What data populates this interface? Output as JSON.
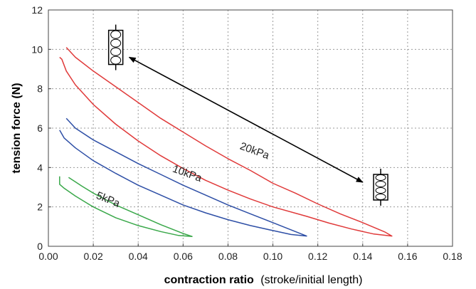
{
  "chart_data": {
    "type": "line",
    "xlabel_bold": "contraction ratio",
    "xlabel_rest": "(stroke/initial length)",
    "ylabel": "tension force (N)",
    "xlim": [
      0,
      0.18
    ],
    "ylim": [
      0,
      12
    ],
    "xticks": [
      "0.00",
      "0.02",
      "0.04",
      "0.06",
      "0.08",
      "0.10",
      "0.12",
      "0.14",
      "0.16",
      "0.18"
    ],
    "yticks": [
      "0",
      "2",
      "4",
      "6",
      "8",
      "10",
      "12"
    ],
    "grid": true,
    "series": [
      {
        "name": "20kPa",
        "color": "#e03a3a",
        "label_pos": [
          0.085,
          4.95
        ],
        "label_rotate": 20,
        "upper": [
          [
            0.008,
            10.1
          ],
          [
            0.012,
            9.6
          ],
          [
            0.02,
            8.9
          ],
          [
            0.03,
            8.1
          ],
          [
            0.04,
            7.3
          ],
          [
            0.05,
            6.5
          ],
          [
            0.06,
            5.8
          ],
          [
            0.07,
            5.1
          ],
          [
            0.08,
            4.45
          ],
          [
            0.09,
            3.85
          ],
          [
            0.1,
            3.2
          ],
          [
            0.11,
            2.7
          ],
          [
            0.12,
            2.15
          ],
          [
            0.13,
            1.65
          ],
          [
            0.14,
            1.2
          ],
          [
            0.15,
            0.72
          ],
          [
            0.153,
            0.52
          ]
        ],
        "lower": [
          [
            0.153,
            0.52
          ],
          [
            0.145,
            0.62
          ],
          [
            0.135,
            0.88
          ],
          [
            0.125,
            1.18
          ],
          [
            0.115,
            1.52
          ],
          [
            0.1,
            2.0
          ],
          [
            0.09,
            2.4
          ],
          [
            0.08,
            2.85
          ],
          [
            0.07,
            3.35
          ],
          [
            0.06,
            3.95
          ],
          [
            0.05,
            4.6
          ],
          [
            0.04,
            5.35
          ],
          [
            0.03,
            6.2
          ],
          [
            0.02,
            7.2
          ],
          [
            0.012,
            8.2
          ],
          [
            0.008,
            8.9
          ],
          [
            0.006,
            9.5
          ],
          [
            0.005,
            9.6
          ]
        ]
      },
      {
        "name": "10kPa",
        "color": "#2e4fa6",
        "label_pos": [
          0.055,
          3.8
        ],
        "label_rotate": 20,
        "upper": [
          [
            0.008,
            6.5
          ],
          [
            0.012,
            6.0
          ],
          [
            0.02,
            5.4
          ],
          [
            0.03,
            4.8
          ],
          [
            0.04,
            4.2
          ],
          [
            0.05,
            3.65
          ],
          [
            0.06,
            3.1
          ],
          [
            0.07,
            2.6
          ],
          [
            0.08,
            2.1
          ],
          [
            0.09,
            1.65
          ],
          [
            0.1,
            1.2
          ],
          [
            0.11,
            0.75
          ],
          [
            0.115,
            0.52
          ]
        ],
        "lower": [
          [
            0.115,
            0.52
          ],
          [
            0.108,
            0.6
          ],
          [
            0.1,
            0.8
          ],
          [
            0.09,
            1.05
          ],
          [
            0.08,
            1.35
          ],
          [
            0.07,
            1.7
          ],
          [
            0.06,
            2.1
          ],
          [
            0.05,
            2.6
          ],
          [
            0.04,
            3.1
          ],
          [
            0.03,
            3.7
          ],
          [
            0.02,
            4.35
          ],
          [
            0.012,
            5.0
          ],
          [
            0.007,
            5.5
          ],
          [
            0.005,
            5.9
          ]
        ]
      },
      {
        "name": "5kPa",
        "color": "#3aa84a",
        "label_pos": [
          0.021,
          2.45
        ],
        "label_rotate": 22,
        "upper": [
          [
            0.009,
            3.5
          ],
          [
            0.015,
            3.05
          ],
          [
            0.02,
            2.7
          ],
          [
            0.03,
            2.1
          ],
          [
            0.04,
            1.6
          ],
          [
            0.05,
            1.1
          ],
          [
            0.06,
            0.65
          ],
          [
            0.064,
            0.5
          ]
        ],
        "lower": [
          [
            0.064,
            0.5
          ],
          [
            0.058,
            0.55
          ],
          [
            0.05,
            0.75
          ],
          [
            0.04,
            1.05
          ],
          [
            0.03,
            1.45
          ],
          [
            0.02,
            2.0
          ],
          [
            0.012,
            2.55
          ],
          [
            0.007,
            2.95
          ],
          [
            0.005,
            3.15
          ],
          [
            0.005,
            3.55
          ]
        ]
      }
    ],
    "annotations": {
      "arrow": {
        "from": [
          0.036,
          9.6
        ],
        "to": [
          0.14,
          3.25
        ],
        "color": "#000000",
        "double_headed": true
      },
      "icon_extended": {
        "x": 0.03,
        "y": 10.1,
        "name": "spring-icon-extended"
      },
      "icon_contracted": {
        "x": 0.148,
        "y": 3.0,
        "name": "spring-icon-contracted"
      }
    }
  }
}
